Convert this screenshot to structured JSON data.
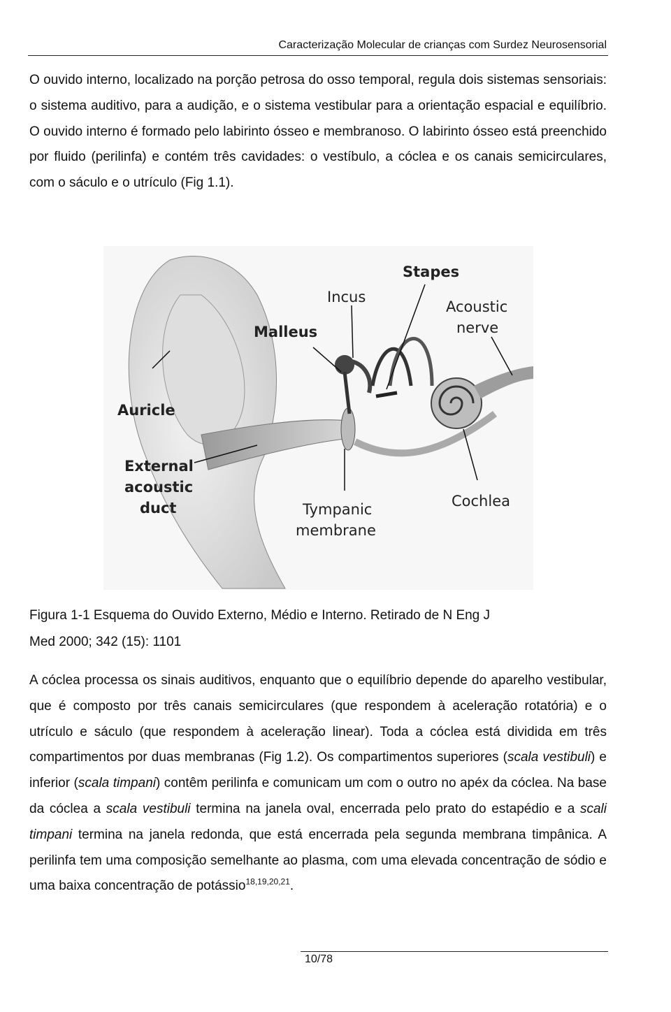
{
  "header": {
    "title": "Caracterização Molecular de crianças com Surdez Neurosensorial"
  },
  "paragraph1": "O ouvido interno, localizado na porção petrosa do osso temporal, regula dois sistemas sensoriais: o sistema auditivo, para a audição, e o sistema vestibular para a orientação espacial e equilíbrio. O ouvido interno é formado pelo labirinto ósseo e membranoso. O labirinto ósseo está preenchido por fluido (perilinfa) e contém três cavidades: o vestíbulo, a cóclea e os canais semicirculares, com o sáculo e o utrículo (Fig 1.1).",
  "figure": {
    "labels": {
      "stapes": [
        "Stapes"
      ],
      "incus": [
        "Incus"
      ],
      "acoustic_nerve": [
        "Acoustic",
        "nerve"
      ],
      "malleus": [
        "Malleus"
      ],
      "auricle": [
        "Auricle"
      ],
      "external_duct": [
        "External",
        "acoustic",
        "duct"
      ],
      "tympanic": [
        "Tympanic",
        "membrane"
      ],
      "cochlea": [
        "Cochlea"
      ]
    },
    "caption": "Figura 1-1 Esquema do Ouvido Externo, Médio e Interno. Retirado de N Eng J Med 2000; 342 (15): 1101"
  },
  "paragraph2": [
    "A cóclea processa os sinais auditivos, enquanto que o equilíbrio depende do aparelho vestibular, que é composto por três canais semicirculares (que respondem à aceleração rotatória) e o utrículo e sáculo (que respondem à aceleração linear). Toda a cóclea está dividida em três compartimentos por duas membranas (Fig 1.2). Os compartimentos superiores (",
    "scala vestibuli",
    ") e inferior (",
    "scala timpani",
    ") contêm perilinfa e comunicam um com o outro no apéx da cóclea. Na base da cóclea a ",
    "scala vestibuli",
    " termina na janela oval, encerrada pelo prato do estapédio e a ",
    "scali timpani",
    " termina na janela redonda, que está encerrada pela segunda membrana timpânica. A perilinfa tem uma composição semelhante ao plasma, com uma elevada concentração de sódio e uma baixa concentração de potássio",
    "18,19,20,21",
    "."
  ],
  "footer": {
    "page": "10/78"
  }
}
